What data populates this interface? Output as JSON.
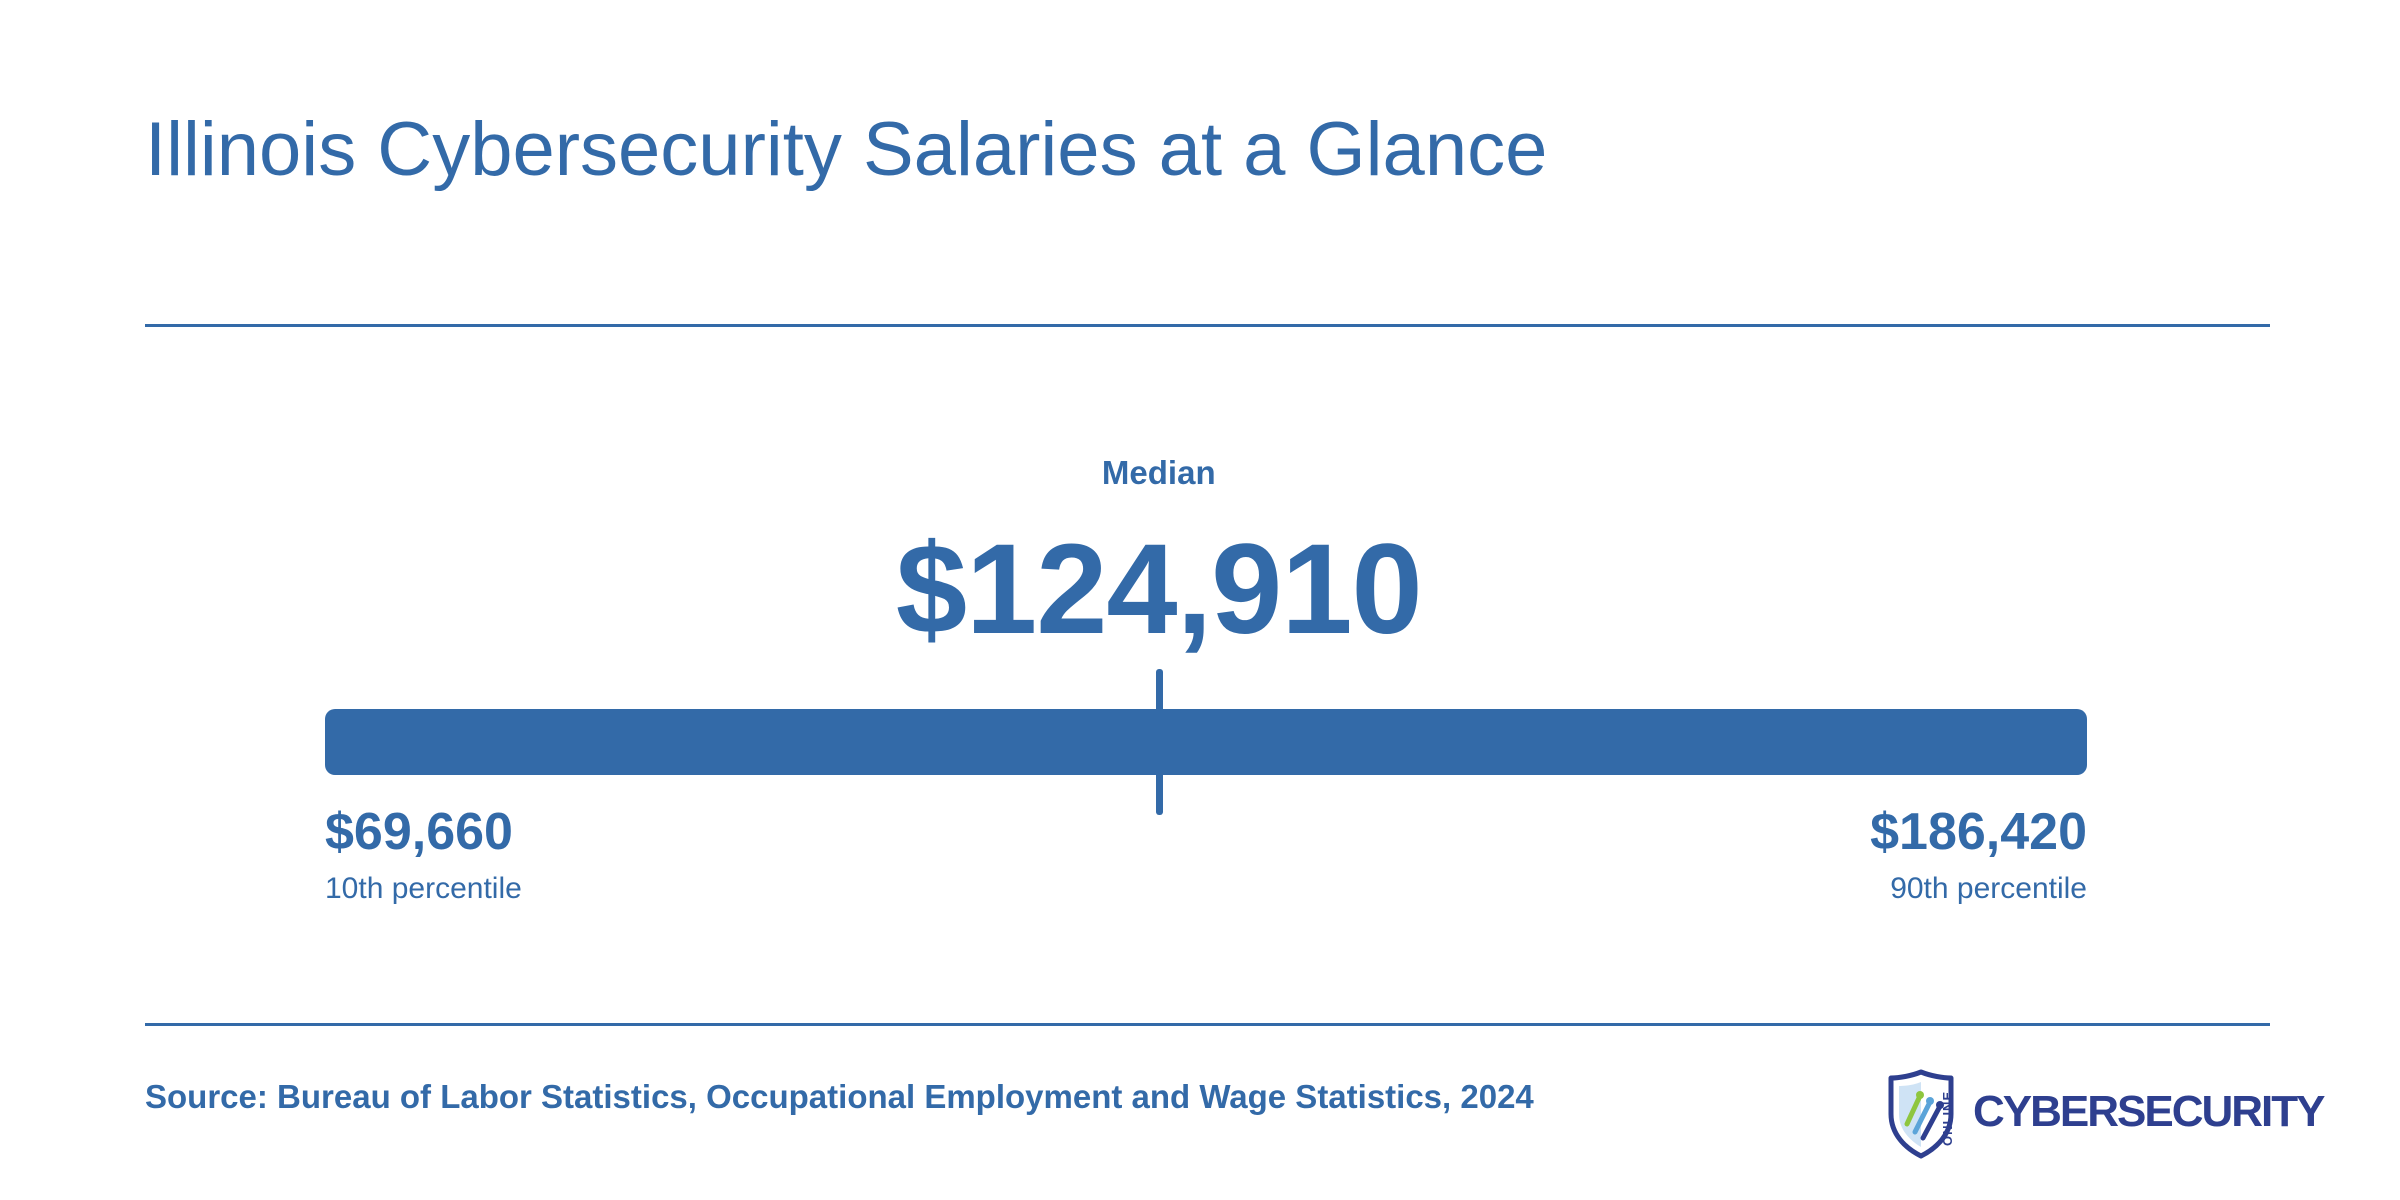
{
  "header": {
    "title": "Illinois Cybersecurity Salaries at a Glance"
  },
  "chart_data": {
    "type": "range",
    "median_label": "Median",
    "median_display": "$124,910",
    "median": 124910,
    "min": 69660,
    "max": 186420,
    "min_display": "$69,660",
    "max_display": "$186,420",
    "min_label": "10th percentile",
    "max_label": "90th percentile",
    "bar_color": "#336aa8"
  },
  "footer": {
    "source": "Source: Bureau of Labor Statistics, Occupational Employment and Wage Statistics, 2024"
  },
  "logo": {
    "online": "ONLINE",
    "text": "CYBERSECURITY",
    "icon": "shield-circuit-icon",
    "text_color": "#2e3f8f",
    "accent_colors": [
      "#8ec63f",
      "#5ba4d9",
      "#2e3f8f"
    ]
  },
  "colors": {
    "accent": "#336aa8"
  }
}
